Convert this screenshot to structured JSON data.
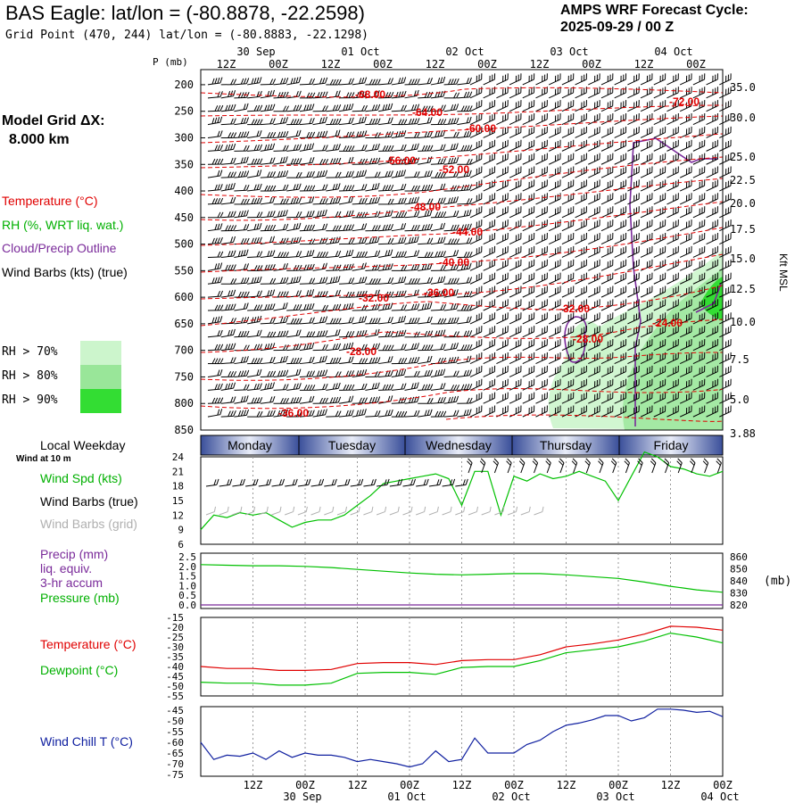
{
  "header": {
    "title": "BAS Eagle:  lat/lon = (-80.8878, -22.2598)",
    "subtitle": "Grid Point (470, 244) lat/lon = (-80.8883, -22.1298)",
    "cycle_label": "AMPS WRF Forecast Cycle:",
    "cycle_value": "2025-09-29 / 00  Z"
  },
  "sidebar": {
    "grid_label": "Model Grid ΔX:",
    "grid_value": "8.000 km",
    "temp_legend": "Temperature (°C)",
    "rh_legend": "RH (%, WRT liq. wat.)",
    "cloud_legend": "Cloud/Precip Outline",
    "wind_legend": "Wind Barbs (kts) (true)",
    "rh70": "RH > 70%",
    "rh80": "RH > 80%",
    "rh90": "RH > 90%",
    "local_weekday": "Local Weekday",
    "wind10": "Wind at 10 m",
    "wspd_legend": "Wind Spd (kts)",
    "wbarb_true": "Wind Barbs (true)",
    "wbarb_grid": "Wind Barbs (grid)",
    "precip1": "Precip (mm)",
    "precip2": "liq. equiv.",
    "precip3": "3-hr accum",
    "pressure_legend": "Pressure (mb)",
    "temp2_legend": "Temperature (°C)",
    "dew_legend": "Dewpoint (°C)",
    "chill_legend": "Wind Chill T (°C)",
    "p_axis_label": "P (mb)",
    "kft_label": "Kft MSL",
    "pressure_unit": "(mb)"
  },
  "colors": {
    "temp": "#e00000",
    "rh": "#00c000",
    "cloud": "#7a2a9a",
    "wind": "#000000",
    "grid_barb": "#b0b0b0",
    "chill": "#1020a0",
    "rh70": "#ccf5cc",
    "rh80": "#99e699",
    "rh90": "#33dd33",
    "day_dark": "#3a4f9a",
    "day_light": "#e8ecf8"
  },
  "chart_data": [
    {
      "type": "heatmap",
      "name": "cross-section",
      "x_hours": [
        0,
        120
      ],
      "top_time_ticks": [
        "12Z",
        "00Z",
        "12Z",
        "00Z",
        "12Z",
        "00Z",
        "12Z",
        "00Z",
        "12Z",
        "00Z"
      ],
      "top_date_labels": [
        "30 Sep",
        "01 Oct",
        "02 Oct",
        "03 Oct",
        "04 Oct"
      ],
      "pressure_levels": [
        200,
        250,
        300,
        350,
        400,
        450,
        500,
        550,
        600,
        650,
        700,
        750,
        800,
        850
      ],
      "height_kft_labels": [
        "35.0",
        "30.0",
        "25.0",
        "22.5",
        "20.0",
        "17.5",
        "15.0",
        "12.5",
        "10.0",
        "7.5",
        "5.0",
        "3.88"
      ],
      "temp_contour_labels": [
        "-68.00",
        "-64.00",
        "-60.00",
        "-56.00",
        "-52.00",
        "-48.00",
        "-44.00",
        "-40.00",
        "-36.00",
        "-32.00",
        "-32.00",
        "-28.00",
        "-28.00",
        "-24.00",
        "-36.00",
        "-72.00"
      ]
    },
    {
      "type": "line",
      "name": "wind-speed",
      "days": [
        "Monday",
        "Tuesday",
        "Wednesday",
        "Thursday",
        "Friday"
      ],
      "ylim": [
        6,
        24
      ],
      "yticks": [
        "24",
        "21",
        "18",
        "15",
        "12",
        "9",
        "6"
      ],
      "x": [
        0,
        3,
        6,
        9,
        12,
        15,
        18,
        21,
        24,
        27,
        30,
        33,
        36,
        39,
        42,
        45,
        48,
        51,
        54,
        57,
        60,
        63,
        66,
        69,
        72,
        75,
        78,
        81,
        84,
        87,
        90,
        93,
        96,
        99,
        102,
        105,
        108,
        111,
        114,
        117,
        120
      ],
      "values": [
        9,
        12,
        11.5,
        12.5,
        12,
        12.5,
        11,
        9.5,
        10.5,
        11,
        11,
        12,
        14,
        16,
        18.5,
        19,
        19.5,
        20,
        20.5,
        19.5,
        14,
        21,
        21,
        12,
        20,
        19,
        20.5,
        19.5,
        20,
        21,
        20,
        19,
        15,
        20,
        25,
        24,
        22,
        21.5,
        20.5,
        20,
        21
      ]
    },
    {
      "type": "line",
      "name": "pressure-precip",
      "left_ylim": [
        0,
        2.5
      ],
      "left_yticks": [
        "2.5",
        "2.0",
        "1.5",
        "1.0",
        "0.5",
        "0.0"
      ],
      "right_ylim": [
        820,
        860
      ],
      "right_yticks": [
        "860",
        "850",
        "840",
        "830",
        "820"
      ],
      "x": [
        0,
        6,
        12,
        18,
        24,
        30,
        36,
        42,
        48,
        54,
        60,
        66,
        72,
        78,
        84,
        90,
        96,
        102,
        108,
        114,
        120
      ],
      "pressure": [
        853.5,
        853,
        852.5,
        852.5,
        852,
        851,
        849.5,
        848,
        846.5,
        845.5,
        845,
        845.5,
        846,
        846,
        845,
        843.5,
        842,
        839,
        835.5,
        832.5,
        830.5
      ],
      "precip": [
        0,
        0,
        0,
        0,
        0,
        0,
        0,
        0,
        0,
        0,
        0,
        0,
        0,
        0,
        0,
        0,
        0,
        0,
        0,
        0,
        0
      ]
    },
    {
      "type": "line",
      "name": "temperature-dewpoint",
      "ylim": [
        -55,
        -15
      ],
      "yticks": [
        "-15",
        "-20",
        "-25",
        "-30",
        "-35",
        "-40",
        "-45",
        "-50",
        "-55"
      ],
      "x": [
        0,
        6,
        12,
        18,
        24,
        30,
        36,
        42,
        48,
        54,
        60,
        66,
        72,
        78,
        84,
        90,
        96,
        102,
        108,
        114,
        120
      ],
      "temperature": [
        -40,
        -41,
        -41,
        -42,
        -42,
        -41.5,
        -38.5,
        -38,
        -38,
        -39,
        -37,
        -36.5,
        -36.5,
        -34,
        -30,
        -28.5,
        -26.5,
        -23.5,
        -19.5,
        -20,
        -21.5
      ],
      "dewpoint": [
        -48,
        -48.5,
        -48.5,
        -49.5,
        -49.5,
        -48.5,
        -43.5,
        -43,
        -43,
        -44,
        -40.5,
        -40,
        -40,
        -37,
        -33,
        -31.5,
        -30,
        -27,
        -23,
        -25,
        -28
      ]
    },
    {
      "type": "line",
      "name": "wind-chill",
      "ylim": [
        -75,
        -45
      ],
      "yticks": [
        "-45",
        "-50",
        "-55",
        "-60",
        "-65",
        "-70",
        "-75"
      ],
      "x": [
        0,
        3,
        6,
        9,
        12,
        15,
        18,
        21,
        24,
        27,
        30,
        33,
        36,
        39,
        42,
        45,
        48,
        51,
        54,
        57,
        60,
        63,
        66,
        69,
        72,
        75,
        78,
        81,
        84,
        87,
        90,
        93,
        96,
        99,
        102,
        105,
        108,
        111,
        114,
        117,
        120
      ],
      "values": [
        -60,
        -68,
        -66,
        -66.5,
        -65,
        -68,
        -64,
        -67,
        -65,
        -66,
        -66,
        -67,
        -69,
        -68,
        -69,
        -70,
        -71.5,
        -70,
        -64,
        -69,
        -68,
        -58,
        -65,
        -65,
        -65,
        -61,
        -59,
        -55,
        -52,
        -51,
        -49.5,
        -47.5,
        -47.5,
        -50,
        -48.5,
        -44.5,
        -44.5,
        -45,
        -46,
        -45.5,
        -48
      ]
    }
  ],
  "bottom_axis": {
    "time_ticks": [
      "12Z",
      "00Z",
      "12Z",
      "00Z",
      "12Z",
      "00Z",
      "12Z",
      "00Z",
      "12Z",
      "00Z"
    ],
    "date_labels": [
      "30 Sep",
      "01 Oct",
      "02 Oct",
      "03 Oct",
      "04 Oct"
    ]
  }
}
